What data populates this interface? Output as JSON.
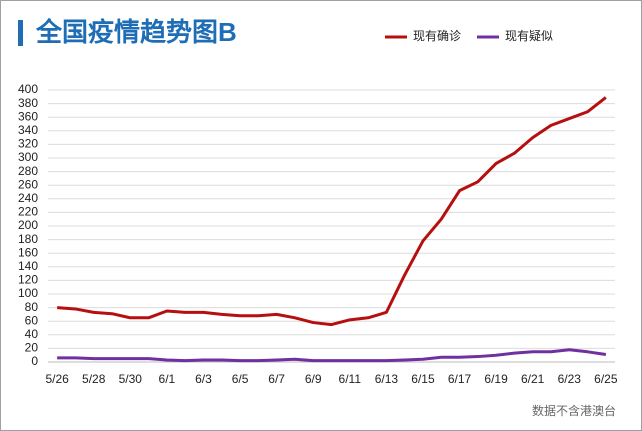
{
  "chart_data": {
    "type": "line",
    "title": "全国疫情趋势图B",
    "source": "数据不含港澳台",
    "categories": [
      "5/26",
      null,
      "5/28",
      null,
      "5/30",
      null,
      "6/1",
      null,
      "6/3",
      null,
      "6/5",
      null,
      "6/7",
      null,
      "6/9",
      null,
      "6/11",
      null,
      "6/13",
      null,
      "6/15",
      null,
      "6/17",
      null,
      "6/19",
      null,
      "6/21",
      null,
      "6/23",
      null,
      "6/25"
    ],
    "series": [
      {
        "name": "现有确诊",
        "color": "#b50f0f",
        "values": [
          80,
          78,
          73,
          71,
          65,
          65,
          75,
          73,
          73,
          70,
          68,
          68,
          70,
          65,
          58,
          55,
          62,
          65,
          73,
          128,
          178,
          210,
          252,
          265,
          292,
          307,
          330,
          348,
          358,
          368,
          389
        ]
      },
      {
        "name": "现有疑似",
        "color": "#7030a0",
        "values": [
          6,
          6,
          5,
          5,
          5,
          5,
          3,
          2,
          3,
          3,
          2,
          2,
          3,
          4,
          2,
          2,
          2,
          2,
          2,
          3,
          4,
          7,
          7,
          8,
          10,
          13,
          15,
          15,
          18,
          15,
          11
        ]
      }
    ],
    "ylim": [
      0,
      400
    ],
    "yticks": [
      0,
      20,
      40,
      60,
      80,
      100,
      120,
      140,
      160,
      180,
      200,
      220,
      240,
      260,
      280,
      300,
      320,
      340,
      360,
      380,
      400
    ],
    "grid": true,
    "legend": "top-right"
  }
}
